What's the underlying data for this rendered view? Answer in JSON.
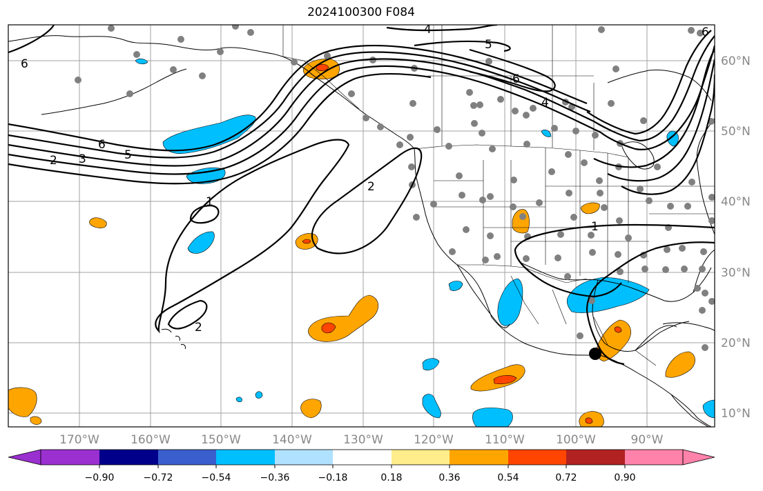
{
  "title": "2024100300 F084",
  "map": {
    "lon_ticks": [
      "170°W",
      "160°W",
      "150°W",
      "140°W",
      "130°W",
      "120°W",
      "110°W",
      "100°W",
      "90°W"
    ],
    "lat_ticks": [
      "60°N",
      "50°N",
      "40°N",
      "30°N",
      "20°N",
      "10°N"
    ],
    "contour_labels": [
      "6",
      "6",
      "6",
      "6",
      "5",
      "5",
      "4",
      "4",
      "3",
      "2",
      "2",
      "2",
      "1",
      "1"
    ],
    "colorbar": {
      "tick_labels": [
        "−0.90",
        "−0.72",
        "−0.54",
        "−0.36",
        "−0.18",
        "0.18",
        "0.36",
        "0.54",
        "0.72",
        "0.90"
      ],
      "colors": [
        "#9b30d0",
        "#00008b",
        "#3a5fcd",
        "#00bfff",
        "#b0e2ff",
        "#ffffff",
        "#ffec8b",
        "#ffa500",
        "#ff4500",
        "#b22222",
        "#ff82ab"
      ]
    },
    "colors": {
      "contour": "#000000",
      "station": "#808080",
      "grid": "#a0a0a0",
      "coast": "#000000"
    },
    "marker": "black-circle"
  }
}
